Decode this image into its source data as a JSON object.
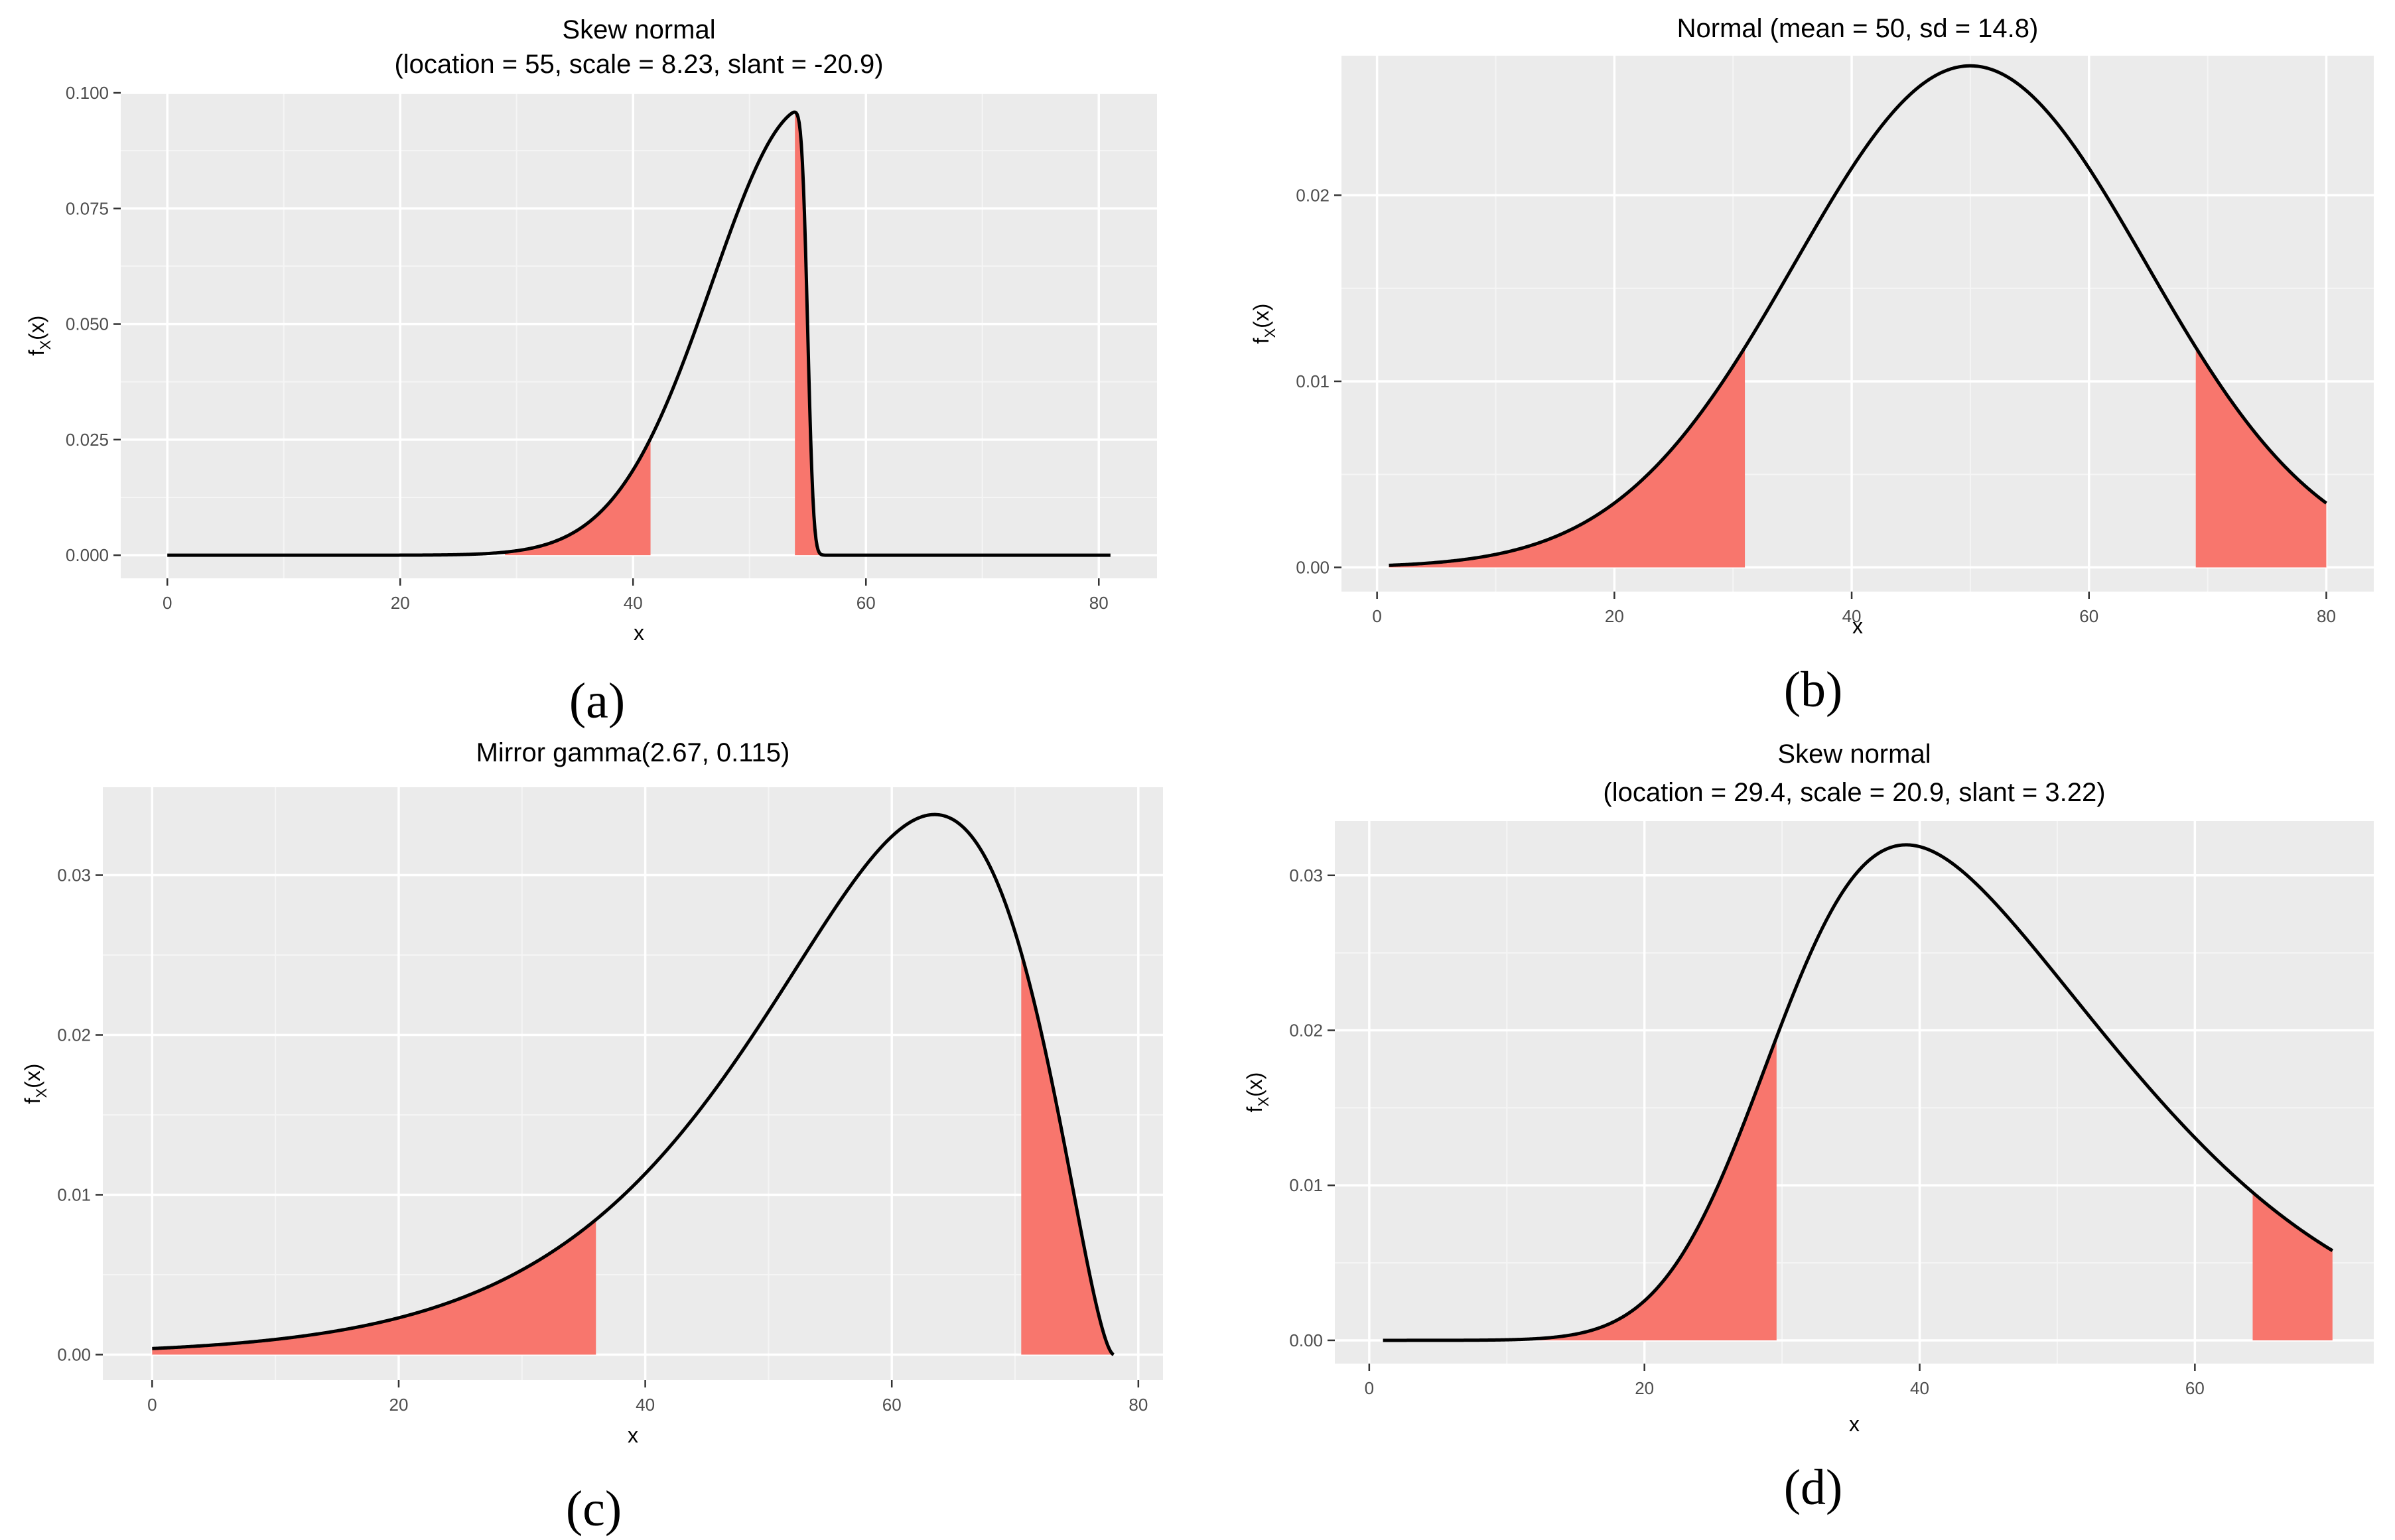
{
  "chart_data": [
    {
      "id": "a",
      "type": "area",
      "panel_label": "(a)",
      "title": "Skew normal",
      "subtitle": "(location = 55, scale = 8.23, slant = -20.9)",
      "xlabel": "x",
      "ylabel_main": "f",
      "ylabel_sub": "X",
      "ylabel_tail": "(x)",
      "xlim": [
        -4,
        85
      ],
      "ylim": [
        -0.005,
        0.1
      ],
      "xticks": [
        0,
        20,
        40,
        60,
        80
      ],
      "xtick_labels": [
        "0",
        "20",
        "40",
        "60",
        "80"
      ],
      "yticks": [
        0,
        0.025,
        0.05,
        0.075,
        0.1
      ],
      "ytick_labels": [
        "0.000",
        "0.025",
        "0.050",
        "0.075",
        "0.100"
      ],
      "grid": true,
      "distribution": {
        "family": "skew-normal",
        "location": 55,
        "scale": 8.23,
        "slant": -20.9
      },
      "curve_range": [
        0,
        81
      ],
      "shaded": [
        [
          29,
          41.5
        ],
        [
          53.9,
          57
        ]
      ],
      "fill_color": "#F8766D",
      "line_color": "#000000"
    },
    {
      "id": "b",
      "type": "area",
      "panel_label": "(b)",
      "title": "Normal (mean = 50, sd = 14.8)",
      "subtitle": "",
      "xlabel": "x",
      "ylabel_main": "f",
      "ylabel_sub": "X",
      "ylabel_tail": "(x)",
      "xlim": [
        -3,
        84
      ],
      "ylim": [
        -0.0013,
        0.0275
      ],
      "xticks": [
        0,
        20,
        40,
        60,
        80
      ],
      "xtick_labels": [
        "0",
        "20",
        "40",
        "60",
        "80"
      ],
      "yticks": [
        0,
        0.01,
        0.02
      ],
      "ytick_labels": [
        "0.00",
        "0.01",
        "0.02"
      ],
      "grid": true,
      "distribution": {
        "family": "normal",
        "mean": 50,
        "sd": 14.8
      },
      "curve_range": [
        1,
        80
      ],
      "shaded": [
        [
          1,
          31
        ],
        [
          69,
          80
        ]
      ],
      "fill_color": "#F8766D",
      "line_color": "#000000"
    },
    {
      "id": "c",
      "type": "area",
      "panel_label": "(c)",
      "title": "Mirror gamma(2.67, 0.115)",
      "subtitle": "",
      "xlabel": "x",
      "ylabel_main": "f",
      "ylabel_sub": "X",
      "ylabel_tail": "(x)",
      "xlim": [
        -4,
        82
      ],
      "ylim": [
        -0.0016,
        0.0355
      ],
      "xticks": [
        0,
        20,
        40,
        60,
        80
      ],
      "xtick_labels": [
        "0",
        "20",
        "40",
        "60",
        "80"
      ],
      "yticks": [
        0,
        0.01,
        0.02,
        0.03
      ],
      "ytick_labels": [
        "0.00",
        "0.01",
        "0.02",
        "0.03"
      ],
      "grid": true,
      "distribution": {
        "family": "mirror-gamma",
        "shape": 2.67,
        "rate": 0.115,
        "mirror": 78
      },
      "curve_range": [
        0,
        78
      ],
      "shaded": [
        [
          0,
          36
        ],
        [
          70.5,
          78
        ]
      ],
      "fill_color": "#F8766D",
      "line_color": "#000000"
    },
    {
      "id": "d",
      "type": "area",
      "panel_label": "(d)",
      "title": "Skew normal",
      "subtitle": "(location = 29.4, scale = 20.9, slant = 3.22)",
      "xlabel": "x",
      "ylabel_main": "f",
      "ylabel_sub": "X",
      "ylabel_tail": "(x)",
      "xlim": [
        -2.5,
        73
      ],
      "ylim": [
        -0.0015,
        0.0335
      ],
      "xticks": [
        0,
        20,
        40,
        60
      ],
      "xtick_labels": [
        "0",
        "20",
        "40",
        "60"
      ],
      "yticks": [
        0,
        0.01,
        0.02,
        0.03
      ],
      "ytick_labels": [
        "0.00",
        "0.01",
        "0.02",
        "0.03"
      ],
      "grid": true,
      "distribution": {
        "family": "skew-normal",
        "location": 29.4,
        "scale": 20.9,
        "slant": 3.22
      },
      "curve_range": [
        1,
        70
      ],
      "shaded": [
        [
          1,
          29.6
        ],
        [
          64.2,
          70
        ]
      ],
      "fill_color": "#F8766D",
      "line_color": "#000000"
    }
  ]
}
